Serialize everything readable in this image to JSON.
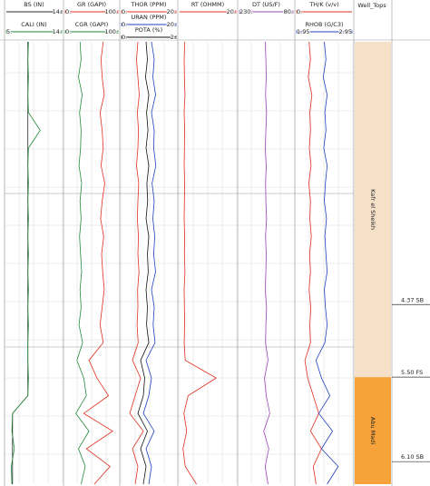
{
  "chart_data": {
    "type": "well_log",
    "depth": [
      0,
      4,
      8,
      12,
      16,
      20,
      24,
      28,
      32,
      36,
      40,
      44,
      48,
      52,
      56,
      60,
      64,
      68,
      72,
      76,
      80,
      84,
      88,
      92,
      96,
      100
    ],
    "ylim": [
      0,
      100
    ],
    "tracks": [
      {
        "curves": [
          {
            "name": "BS (IN)",
            "color": "#2a2a2a",
            "xlim": [
              5,
              14
            ],
            "xticks": [
              {
                "value": 14,
                "label": "14."
              }
            ],
            "values": [
              8.5,
              8.5,
              8.5,
              8.5,
              8.5,
              8.5,
              8.5,
              8.5,
              8.5,
              8.5,
              8.5,
              8.5,
              8.5,
              8.5,
              8.5,
              8.5,
              8.5,
              8.5,
              8.5,
              8.5,
              8.5,
              6.0,
              6.0,
              6.0,
              6.0,
              6.0
            ]
          },
          {
            "name": "CALI (IN)",
            "color": "#1f8a3a",
            "xlim": [
              5,
              14
            ],
            "xticks": [
              {
                "value": 5,
                "label": "5."
              },
              {
                "value": 14,
                "label": "14."
              }
            ],
            "values": [
              8.6,
              8.5,
              8.6,
              8.5,
              8.6,
              10.5,
              8.6,
              8.5,
              8.6,
              8.5,
              8.6,
              8.5,
              8.6,
              8.5,
              8.6,
              8.5,
              8.6,
              8.5,
              8.5,
              8.6,
              8.5,
              6.0,
              5.9,
              6.3,
              5.8,
              5.9
            ]
          }
        ]
      },
      {
        "curves": [
          {
            "name": "GR (GAPI)",
            "color": "#e03020",
            "xlim": [
              0,
              100
            ],
            "xticks": [
              {
                "value": 0,
                "label": "0."
              },
              {
                "value": 100,
                "label": "100."
              }
            ],
            "values": [
              72,
              68,
              70,
              74,
              66,
              70,
              72,
              68,
              75,
              70,
              67,
              73,
              69,
              71,
              74,
              70,
              66,
              72,
              45,
              60,
              82,
              35,
              90,
              40,
              85,
              55
            ]
          },
          {
            "name": "CGR (GAPI)",
            "color": "#1f8a3a",
            "xlim": [
              0,
              100
            ],
            "xticks": [
              {
                "value": 0,
                "label": "0."
              },
              {
                "value": 100,
                "label": "100."
              }
            ],
            "values": [
              28,
              30,
              25,
              32,
              27,
              30,
              29,
              26,
              31,
              28,
              30,
              27,
              29,
              31,
              28,
              30,
              26,
              33,
              22,
              35,
              40,
              20,
              45,
              25,
              38,
              30
            ]
          }
        ]
      },
      {
        "curves": [
          {
            "name": "THOR (PPM)",
            "color": "#e03020",
            "xlim": [
              0,
              20
            ],
            "xticks": [
              {
                "value": 0,
                "label": "0."
              },
              {
                "value": 20,
                "label": "20."
              }
            ],
            "values": [
              6,
              5.5,
              6,
              6.5,
              5.8,
              6.2,
              6,
              5.5,
              6.3,
              6,
              5.8,
              6.2,
              6,
              6.4,
              5.9,
              6,
              5.7,
              6.1,
              4,
              7,
              5,
              3,
              8,
              4,
              6,
              5
            ]
          },
          {
            "name": "URAN (PPM)",
            "color": "#2040c0",
            "xlim": [
              0,
              20
            ],
            "xticks": [
              {
                "value": 0,
                "label": "0."
              },
              {
                "value": 20,
                "label": "20."
              }
            ],
            "values": [
              11,
              12,
              11.5,
              12.5,
              11,
              12,
              11.8,
              12.6,
              11.2,
              12,
              11.5,
              12.2,
              11.8,
              12.5,
              11,
              12,
              11.6,
              12.3,
              9,
              11,
              10,
              8,
              12,
              9,
              11,
              10
            ]
          },
          {
            "name": "POTA (%)",
            "color": "#111111",
            "xlim": [
              0,
              2
            ],
            "xticks": [
              {
                "value": 0,
                "label": "0."
              },
              {
                "value": 2,
                "label": "2."
              }
            ],
            "values": [
              0.9,
              0.95,
              0.88,
              1.0,
              0.92,
              0.97,
              0.9,
              1.0,
              0.93,
              0.96,
              0.9,
              1.0,
              0.95,
              0.98,
              0.9,
              0.95,
              0.92,
              1.0,
              0.7,
              0.85,
              0.8,
              0.6,
              0.95,
              0.7,
              0.9,
              0.8
            ]
          }
        ]
      },
      {
        "curves": [
          {
            "name": "RT (OHMM)",
            "color": "#e03020",
            "xlim": [
              0,
              20
            ],
            "xticks": [
              {
                "value": 20,
                "label": "20."
              }
            ],
            "values": [
              1.8,
              1.6,
              1.7,
              1.9,
              1.6,
              1.8,
              1.7,
              1.6,
              1.8,
              1.7,
              1.6,
              1.8,
              1.7,
              1.9,
              1.6,
              1.7,
              1.8,
              1.6,
              2.0,
              13,
              3,
              1.5,
              2.5,
              1.2,
              2.0,
              6
            ]
          }
        ]
      },
      {
        "curves": [
          {
            "name": "DT (US/F)",
            "color": "#9a4ab8",
            "xlim": [
              230,
              80
            ],
            "xticks": [
              {
                "value": 230,
                "label": "230."
              },
              {
                "value": 80,
                "label": "80."
              }
            ],
            "values": [
              158,
              156,
              155,
              157,
              154,
              156,
              158,
              155,
              157,
              156,
              154,
              157,
              155,
              156,
              158,
              154,
              156,
              157,
              150,
              160,
              155,
              145,
              162,
              148,
              158,
              150
            ]
          }
        ]
      },
      {
        "curves": [
          {
            "name": "TH/K (v/v)",
            "color": "#e03020",
            "xlim": [
              0,
              20
            ],
            "xticks": [
              {
                "value": 0,
                "label": "0."
              }
            ],
            "values": [
              4.5,
              5,
              4.2,
              5.5,
              4.8,
              5,
              4.6,
              5.2,
              4.4,
              5,
              4.8,
              5.3,
              4.7,
              5,
              4.5,
              5.1,
              4.8,
              5,
              3,
              4,
              6,
              8,
              5,
              9,
              6,
              7
            ]
          },
          {
            "name": "RHOB (G/C3)",
            "color": "#2040c0",
            "xlim": [
              1.95,
              2.95
            ],
            "xticks": [
              {
                "value": 1.95,
                "label": "1.95"
              },
              {
                "value": 2.95,
                "label": "2.95"
              }
            ],
            "values": [
              2.45,
              2.48,
              2.43,
              2.5,
              2.46,
              2.48,
              2.44,
              2.5,
              2.47,
              2.45,
              2.49,
              2.46,
              2.48,
              2.5,
              2.45,
              2.47,
              2.5,
              2.46,
              2.3,
              2.4,
              2.55,
              2.35,
              2.6,
              2.4,
              2.7,
              2.5
            ]
          }
        ]
      }
    ],
    "well_tops": {
      "title": "Well_Tops",
      "zones": [
        {
          "name": "Kafr el Sheikh",
          "top": 0,
          "base": 75.8,
          "color": "#f6e0c8"
        },
        {
          "name": "Abu Madi",
          "top": 75.8,
          "base": 100,
          "color": "#f7a23a"
        }
      ],
      "markers": [
        {
          "label": "4.37 SB",
          "depth": 59.4
        },
        {
          "label": "5.50 FS",
          "depth": 75.8
        },
        {
          "label": "6.10 SB",
          "depth": 94.9
        }
      ]
    }
  }
}
